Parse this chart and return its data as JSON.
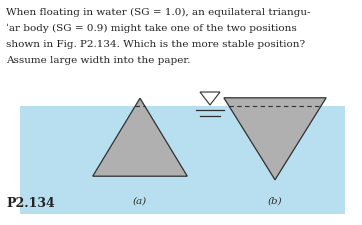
{
  "water_color": "#b8dff0",
  "triangle_color": "#b0b0b0",
  "triangle_edge_color": "#303030",
  "label_a": "(a)",
  "label_b": "(b)",
  "figure_label": "P2.134",
  "bg_color": "#ffffff",
  "text_color": "#222222",
  "text_lines": [
    "When floating in water (SG = 1.0), an equilateral triangu-",
    "ˈar body (SG = 0.9) might take one of the two positions",
    "shown in Fig. P2.134. Which is the more stable position?",
    "Assume large width into the paper."
  ]
}
